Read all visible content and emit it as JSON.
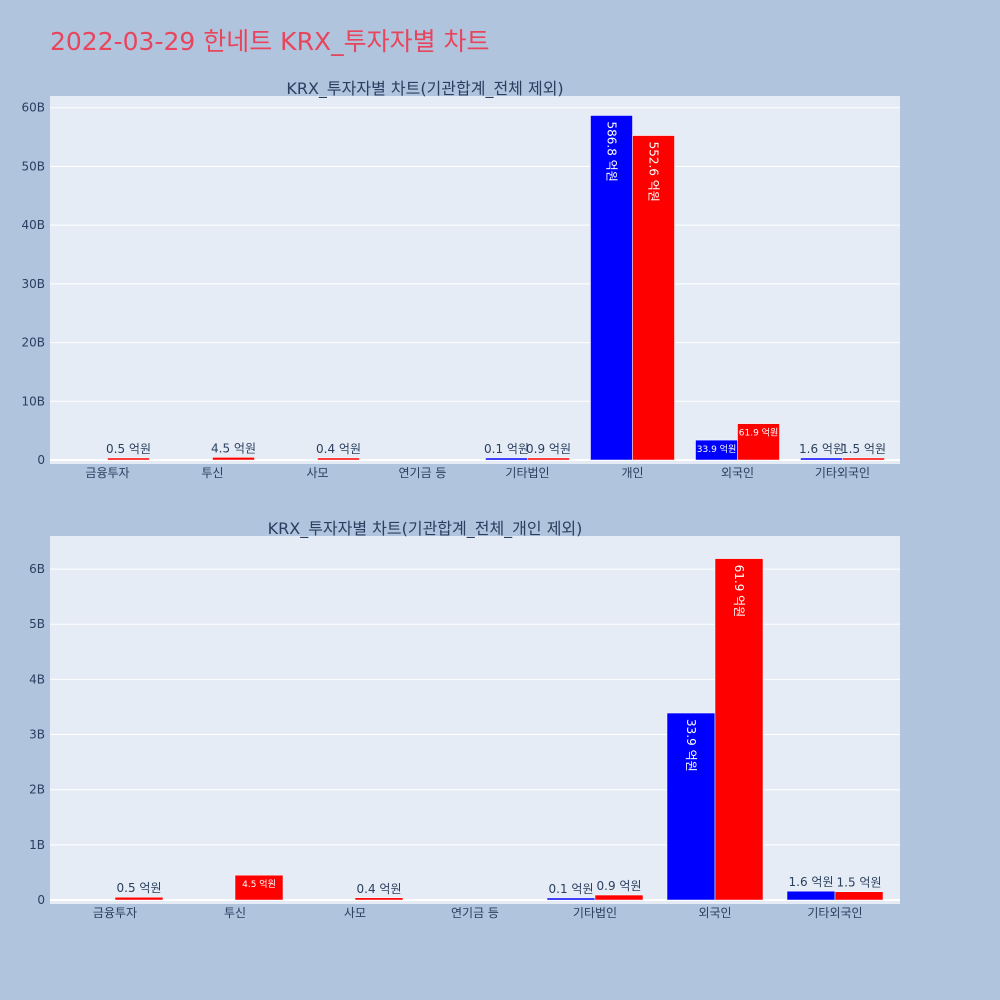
{
  "title": "2022-03-29 한네트 KRX_투자자별 차트",
  "colors": {
    "title": "#e8455c",
    "bg": "#b0c4de",
    "plot_bg": "#e5ecf6",
    "buy": "#0000ff",
    "sell": "#ff0000",
    "text": "#2a3f5f"
  },
  "chart_data": [
    {
      "type": "bar",
      "title": "KRX_투자자별 차트(기관합계_전체 제외)",
      "categories": [
        "금융투자",
        "투신",
        "사모",
        "연기금 등",
        "기타법인",
        "개인",
        "외국인",
        "기타외국인"
      ],
      "series": [
        {
          "color": "#0000ff",
          "values": [
            0,
            0,
            0,
            0,
            10000000,
            58680000000,
            3390000000,
            160000000
          ],
          "labels": [
            "",
            "",
            "",
            "",
            "0.1 억원",
            "586.8 억원",
            "33.9 억원",
            "1.6 억원"
          ]
        },
        {
          "color": "#ff0000",
          "values": [
            50000000,
            450000000,
            40000000,
            0,
            90000000,
            55260000000,
            6190000000,
            150000000
          ],
          "labels": [
            "0.5 억원",
            "4.5 억원",
            "0.4 억원",
            "",
            "0.9 억원",
            "552.6 억원",
            "61.9 억원",
            "1.5 억원"
          ]
        }
      ],
      "y_ticks": [
        "0",
        "10B",
        "20B",
        "30B",
        "40B",
        "50B",
        "60B"
      ],
      "ylim": [
        0,
        62000000000
      ],
      "grid": true
    },
    {
      "type": "bar",
      "title": "KRX_투자자별 차트(기관합계_전체_개인 제외)",
      "categories": [
        "금융투자",
        "투신",
        "사모",
        "연기금 등",
        "기타법인",
        "외국인",
        "기타외국인"
      ],
      "series": [
        {
          "color": "#0000ff",
          "values": [
            0,
            0,
            0,
            0,
            10000000,
            3390000000,
            160000000
          ],
          "labels": [
            "",
            "",
            "",
            "",
            "0.1 억원",
            "33.9 억원",
            "1.6 억원"
          ]
        },
        {
          "color": "#ff0000",
          "values": [
            50000000,
            450000000,
            40000000,
            0,
            90000000,
            6190000000,
            150000000
          ],
          "labels": [
            "0.5 억원",
            "4.5 억원",
            "0.4 억원",
            "",
            "0.9 억원",
            "61.9 억원",
            "1.5 억원"
          ]
        }
      ],
      "y_ticks": [
        "0",
        "1B",
        "2B",
        "3B",
        "4B",
        "5B",
        "6B"
      ],
      "ylim": [
        0,
        6600000000
      ],
      "grid": true
    }
  ]
}
